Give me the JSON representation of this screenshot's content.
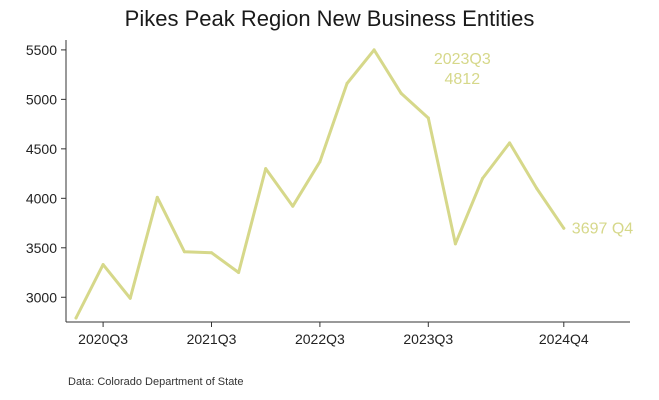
{
  "chart_data": {
    "type": "line",
    "title": "Pikes Peak Region New Business Entities",
    "source": "Data: Colorado Department of State",
    "xlabel": "",
    "ylabel": "",
    "x": [
      "2020Q2",
      "2020Q3",
      "2020Q4",
      "2021Q1",
      "2021Q2",
      "2021Q3",
      "2021Q4",
      "2022Q1",
      "2022Q2",
      "2022Q3",
      "2022Q4",
      "2023Q1",
      "2023Q2",
      "2023Q3",
      "2023Q4",
      "2024Q1",
      "2024Q2",
      "2024Q3",
      "2024Q4"
    ],
    "x_tick_labels": [
      "2020Q3",
      "2021Q3",
      "2022Q3",
      "2023Q3",
      "2024Q4"
    ],
    "series": [
      {
        "values": [
          2790,
          3330,
          2990,
          4010,
          3460,
          3450,
          3250,
          4300,
          3920,
          4370,
          5160,
          5500,
          5060,
          4812,
          3540,
          4200,
          4560,
          4100,
          3697
        ]
      }
    ],
    "ylim": [
      2750,
      5600
    ],
    "y_ticks": [
      3000,
      3500,
      4000,
      4500,
      5000,
      5500
    ],
    "grid": false,
    "line_color": "#d6d88a",
    "annotations": [
      {
        "x": "2023Q3",
        "lines": [
          "2023Q3",
          "4812"
        ]
      },
      {
        "x": "2024Q4",
        "lines": [
          "3697 Q4"
        ]
      }
    ]
  }
}
